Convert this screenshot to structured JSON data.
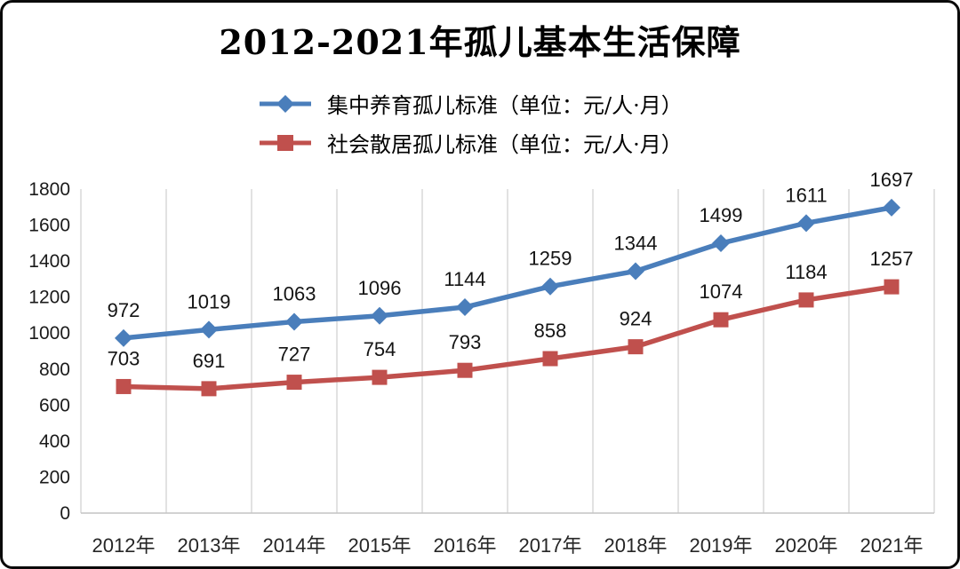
{
  "title": "2012-2021年孤儿基本生活保障",
  "colors": {
    "series1": "#4a7ebb",
    "series2": "#c0504d",
    "gridline": "#d9d9d9",
    "axis_line": "#c4c4c4"
  },
  "chart_data": {
    "type": "line",
    "title": "2012-2021年孤儿基本生活保障",
    "categories": [
      "2012年",
      "2013年",
      "2014年",
      "2015年",
      "2016年",
      "2017年",
      "2018年",
      "2019年",
      "2020年",
      "2021年"
    ],
    "series": [
      {
        "name": "集中养育孤儿标准（单位：元/人·月）",
        "color": "#4a7ebb",
        "marker": "diamond",
        "values": [
          972,
          1019,
          1063,
          1096,
          1144,
          1259,
          1344,
          1499,
          1611,
          1697
        ]
      },
      {
        "name": "社会散居孤儿标准（单位：元/人·月）",
        "color": "#c0504d",
        "marker": "square",
        "values": [
          703,
          691,
          727,
          754,
          793,
          858,
          924,
          1074,
          1184,
          1257
        ]
      }
    ],
    "xlabel": "",
    "ylabel": "",
    "ylim": [
      0,
      1800
    ],
    "ytick_step": 200,
    "grid": "vertical-only",
    "legend_position": "top-center",
    "data_labels": "above-points"
  }
}
